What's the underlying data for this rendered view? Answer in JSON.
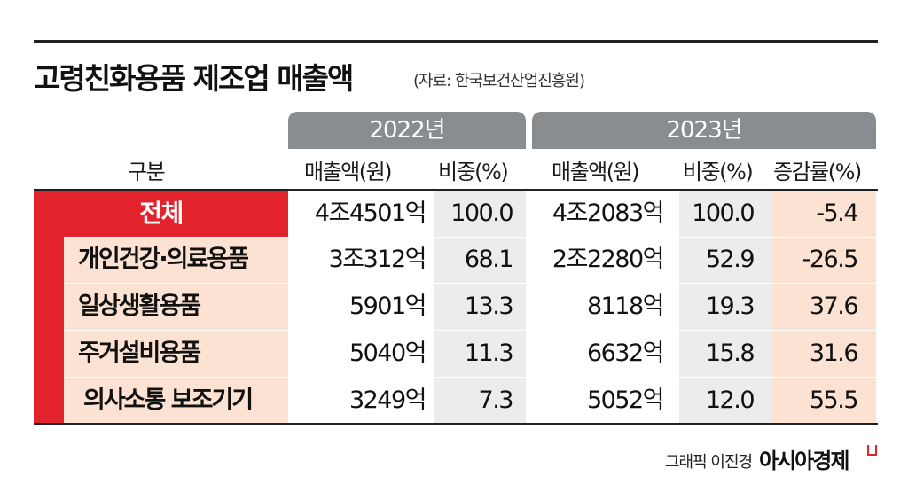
{
  "title": "고령친화용품 제조업 매출액",
  "source": "(자료: 한국보건산업진흥원)",
  "years": [
    "2022년",
    "2023년"
  ],
  "columns": {
    "category": "구분",
    "sales_2022": "매출액(원)",
    "share_2022": "비중(%)",
    "sales_2023": "매출액(원)",
    "share_2023": "비중(%)",
    "growth": "증감률(%)"
  },
  "rows": [
    {
      "label": "전체",
      "sales_2022": "4조4501억",
      "share_2022": "100.0",
      "sales_2023": "4조2083억",
      "share_2023": "100.0",
      "growth": "-5.4"
    },
    {
      "label": "개인건강·의료용품",
      "sales_2022": "3조312억",
      "share_2022": "68.1",
      "sales_2023": "2조2280억",
      "share_2023": "52.9",
      "growth": "-26.5"
    },
    {
      "label": "일상생활용품",
      "sales_2022": "5901억",
      "share_2022": "13.3",
      "sales_2023": "8118억",
      "share_2023": "19.3",
      "growth": "37.6"
    },
    {
      "label": "주거설비용품",
      "sales_2022": "5040억",
      "share_2022": "11.3",
      "sales_2023": "6632억",
      "share_2023": "15.8",
      "growth": "31.6"
    },
    {
      "label": "의사소통 보조기기",
      "sales_2022": "3249억",
      "share_2022": "7.3",
      "sales_2023": "5052억",
      "share_2023": "12.0",
      "growth": "55.5"
    }
  ],
  "credit": "그래픽 이진경",
  "logo": "아시아경제",
  "colors": {
    "accent_red": "#e3232c",
    "peach": "#fbe2d3",
    "gray_header": "#8a8d90",
    "light_gray": "#ececed"
  }
}
